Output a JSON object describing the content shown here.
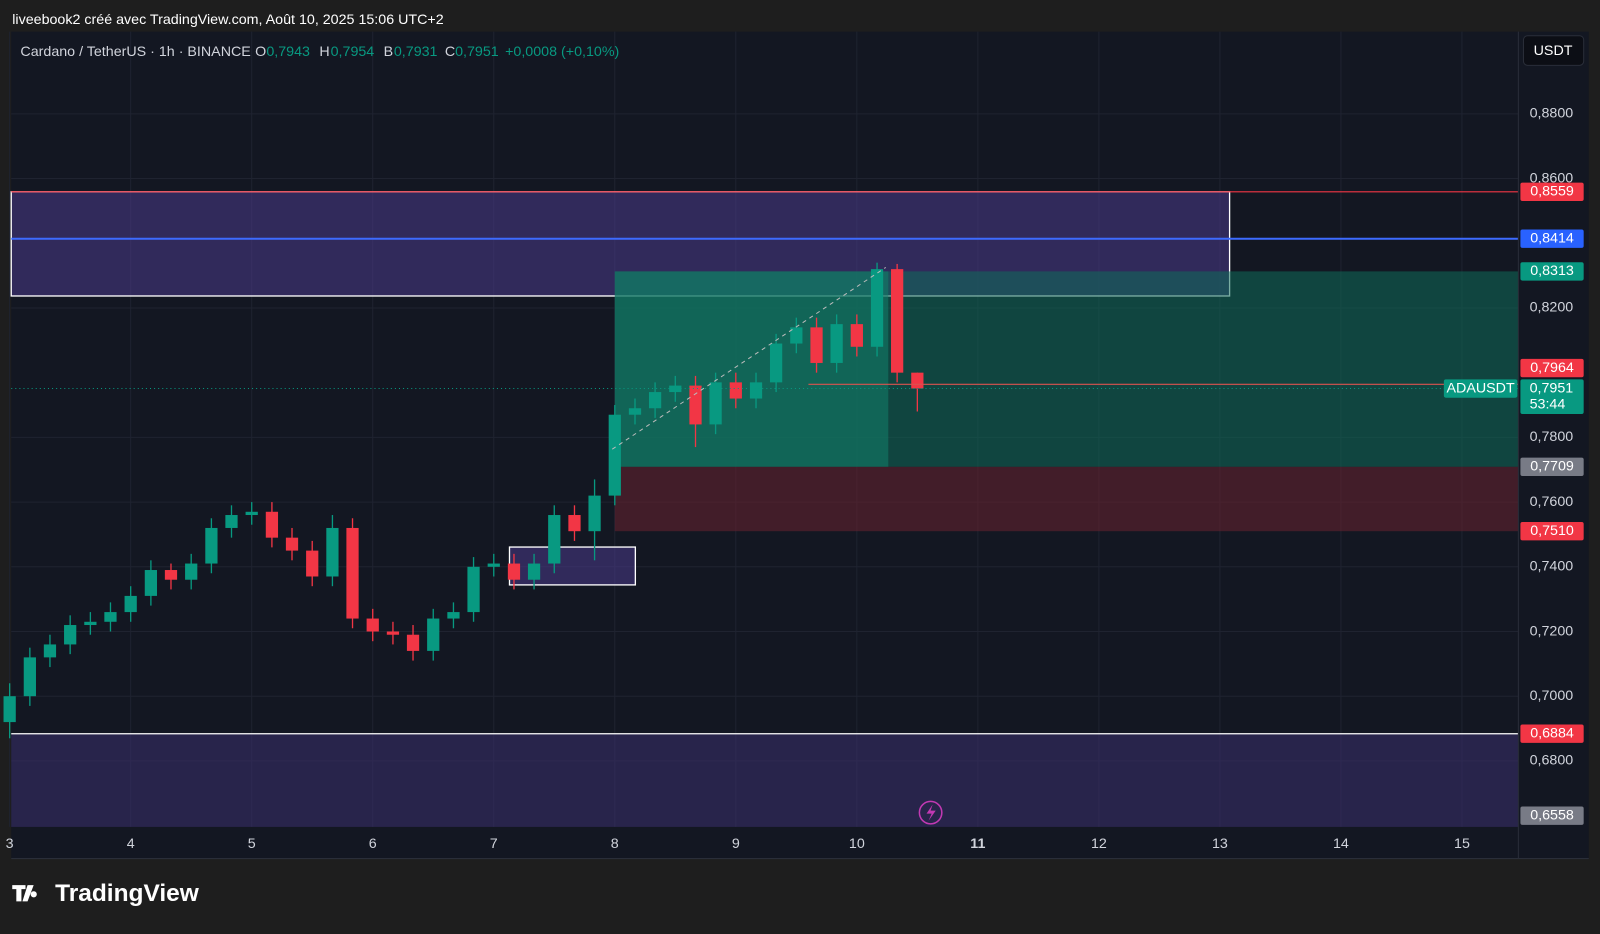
{
  "header": "liveebook2 créé avec TradingView.com, Août 10, 2025 15:06 UTC+2",
  "legend": {
    "symbol": "Cardano / TetherUS · 1h · BINANCE",
    "o_label": "O",
    "o": "0,7943",
    "h_label": "H",
    "h": "0,7954",
    "l_label": "B",
    "l": "0,7931",
    "c_label": "C",
    "c": "0,7951",
    "change": "+0,0008 (+0,10%)"
  },
  "currency_button": "USDT",
  "logo": "TradingView",
  "chart_data": {
    "type": "candlestick",
    "x": [
      3,
      3.167,
      3.333,
      3.5,
      3.667,
      3.833,
      4,
      4.167,
      4.333,
      4.5,
      4.667,
      4.833,
      5,
      5.167,
      5.333,
      5.5,
      5.667,
      5.833,
      6,
      6.167,
      6.333,
      6.5,
      6.667,
      6.833,
      7,
      7.167,
      7.333,
      7.5,
      7.667,
      7.833,
      8,
      8.167,
      8.333,
      8.5,
      8.667,
      8.833,
      9,
      9.167,
      9.333,
      9.5,
      9.667,
      9.833,
      10,
      10.167,
      10.333,
      10.5
    ],
    "open": [
      0.692,
      0.7,
      0.712,
      0.716,
      0.722,
      0.723,
      0.726,
      0.731,
      0.739,
      0.736,
      0.741,
      0.752,
      0.756,
      0.757,
      0.749,
      0.745,
      0.737,
      0.752,
      0.724,
      0.72,
      0.719,
      0.714,
      0.724,
      0.726,
      0.74,
      0.741,
      0.736,
      0.741,
      0.756,
      0.751,
      0.762,
      0.787,
      0.789,
      0.794,
      0.796,
      0.784,
      0.797,
      0.792,
      0.797,
      0.809,
      0.814,
      0.803,
      0.815,
      0.808,
      0.832,
      0.8
    ],
    "high": [
      0.704,
      0.715,
      0.719,
      0.725,
      0.726,
      0.729,
      0.734,
      0.742,
      0.741,
      0.744,
      0.755,
      0.759,
      0.76,
      0.76,
      0.752,
      0.748,
      0.756,
      0.755,
      0.727,
      0.723,
      0.722,
      0.727,
      0.729,
      0.743,
      0.744,
      0.744,
      0.744,
      0.759,
      0.759,
      0.767,
      0.79,
      0.792,
      0.797,
      0.799,
      0.799,
      0.8,
      0.8,
      0.8,
      0.812,
      0.817,
      0.817,
      0.818,
      0.818,
      0.834,
      0.8336,
      0.8
    ],
    "low": [
      0.687,
      0.697,
      0.709,
      0.713,
      0.719,
      0.72,
      0.723,
      0.728,
      0.733,
      0.733,
      0.738,
      0.749,
      0.753,
      0.746,
      0.742,
      0.734,
      0.734,
      0.721,
      0.717,
      0.716,
      0.711,
      0.711,
      0.721,
      0.723,
      0.737,
      0.733,
      0.733,
      0.738,
      0.748,
      0.742,
      0.759,
      0.784,
      0.786,
      0.791,
      0.777,
      0.781,
      0.789,
      0.789,
      0.794,
      0.806,
      0.8,
      0.8,
      0.805,
      0.805,
      0.797,
      0.788
    ],
    "close": [
      0.7,
      0.712,
      0.716,
      0.722,
      0.723,
      0.726,
      0.731,
      0.739,
      0.736,
      0.741,
      0.752,
      0.756,
      0.757,
      0.749,
      0.745,
      0.737,
      0.752,
      0.724,
      0.72,
      0.719,
      0.714,
      0.724,
      0.726,
      0.74,
      0.741,
      0.736,
      0.741,
      0.756,
      0.751,
      0.762,
      0.787,
      0.789,
      0.794,
      0.796,
      0.784,
      0.797,
      0.792,
      0.797,
      0.809,
      0.814,
      0.803,
      0.815,
      0.808,
      0.832,
      0.8,
      0.7951
    ],
    "up_color": "#089981",
    "down_color": "#f23645",
    "xlim": [
      3.013,
      15.466
    ],
    "ylim": [
      0.6596,
      0.9054
    ],
    "xticks": [
      3,
      4,
      5,
      6,
      7,
      8,
      9,
      10,
      {
        "value": 11,
        "label": "11"
      },
      12,
      13,
      14,
      15
    ],
    "yticks": [
      {
        "value": 0.88,
        "label": "0,8800"
      },
      {
        "value": 0.86,
        "label": "0,8600"
      },
      {
        "value": 0.82,
        "label": "0,8200"
      },
      {
        "value": 0.78,
        "label": "0,7800"
      },
      {
        "value": 0.76,
        "label": "0,7600"
      },
      {
        "value": 0.74,
        "label": "0,7400"
      },
      {
        "value": 0.72,
        "label": "0,7200"
      },
      {
        "value": 0.7,
        "label": "0,7000"
      },
      {
        "value": 0.68,
        "label": "0,6800"
      }
    ],
    "grid": true,
    "zones": [
      {
        "x": [
          3.013,
          13.08
        ],
        "y": [
          0.8237,
          0.8559
        ],
        "color": "#4a3a8a"
      },
      {
        "x": [
          8.0,
          15.466
        ],
        "y": [
          0.7709,
          0.8313
        ],
        "color": "#0e6b5a"
      },
      {
        "x": [
          8.0,
          10.26
        ],
        "y": [
          0.7709,
          0.8313
        ],
        "color": "#12806a"
      },
      {
        "x": [
          8.0,
          15.466
        ],
        "y": [
          0.751,
          0.7709
        ],
        "color": "#6a2230"
      },
      {
        "x": [
          7.13,
          8.17
        ],
        "y": [
          0.7344,
          0.7461
        ],
        "color": "#4a3a8a"
      },
      {
        "x": [
          3.013,
          15.466
        ],
        "y": [
          0.6596,
          0.6884
        ],
        "color": "#3a2f6e"
      }
    ],
    "price_labels": [
      {
        "value": 0.8559,
        "label": "0,8559",
        "color": "#f23645",
        "from": 3.013
      },
      {
        "value": 0.8414,
        "label": "0,8414",
        "color": "#2962ff",
        "from": 3.013
      },
      {
        "value": 0.8313,
        "label": "0,8313",
        "color": "#089981",
        "from": null
      },
      {
        "value": 0.7964,
        "label": "0,7964",
        "color": "#f23645",
        "from": 9.6
      },
      {
        "value": 0.7709,
        "label": "0,7709",
        "color": "#787b86",
        "from": null
      },
      {
        "value": 0.751,
        "label": "0,7510",
        "color": "#f23645",
        "from": null
      },
      {
        "value": 0.6884,
        "label": "0,6884",
        "color": "#f23645",
        "from": 3.013
      },
      {
        "value": 0.6558,
        "label": "0,6558",
        "color": "#787b86",
        "from": null
      }
    ],
    "last_price": {
      "value": 0.7951,
      "label": "0,7951",
      "countdown": "53:44",
      "symbol": "ADAUSDT",
      "color": "#089981"
    }
  }
}
